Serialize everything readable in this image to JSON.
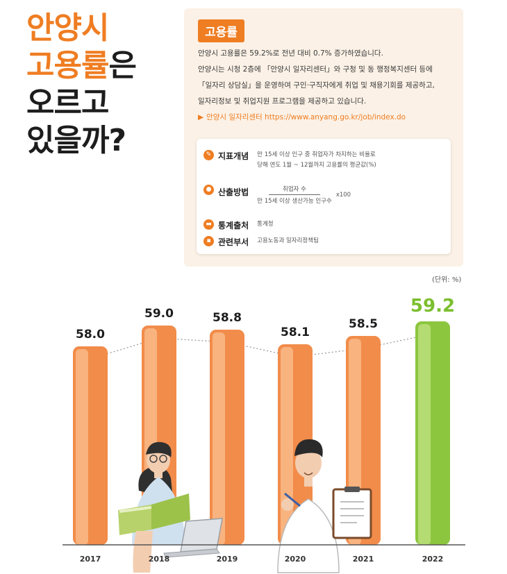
{
  "headline": {
    "line1": "안양시",
    "line2_orange": "고용률",
    "line2_dark": "은",
    "line3": "오르고",
    "line4": "있을까?"
  },
  "info": {
    "tag": "고용률",
    "paragraph": [
      "안양시 고용률은 59.2%로 전년 대비 0.7% 증가하였습니다.",
      "안양시는 시청 2층에 「안양시 일자리센터」와 구청 및 동 행정복지센터 등에",
      "「일자리 상담실」을 운영하여 구인·구직자에게 취업 및 채용기회를 제공하고,",
      "일자리정보 및 취업지원 프로그램을 제공하고 있습니다."
    ],
    "link_label": "안양시 일자리센터",
    "link_url": "https://www.anyang.go.kr/job/index.do",
    "definition": {
      "concept_label": "지표개념",
      "concept_line1": "만 15세 이상 인구 중 취업자가 차지하는 비율로",
      "concept_line2": "당해 연도 1월 ~ 12월까지 고용률의 평균값(%)",
      "method_label": "산출방법",
      "numerator": "취업자 수",
      "denominator": "만 15세 이상 생산가능 인구수",
      "multiplier": "x100",
      "source_label": "통계출처",
      "source_value": "통계청",
      "dept_label": "관련부서",
      "dept_value": "고용노동과 일자리정책팀"
    }
  },
  "unit_label": "(단위: %)",
  "colors": {
    "orange_bar": "#f28c4a",
    "orange_bar_light": "#f8b37f",
    "green_bar": "#8cc63f",
    "green_bar_light": "#b4dc72",
    "accent_orange": "#ef7d22",
    "green_label": "#7cbf2f"
  },
  "chart_data": {
    "type": "bar",
    "categories": [
      "2017",
      "2018",
      "2019",
      "2020",
      "2021",
      "2022"
    ],
    "values": [
      58.0,
      59.0,
      58.8,
      58.1,
      58.5,
      59.2
    ],
    "value_labels": [
      "58.0",
      "59.0",
      "58.8",
      "58.1",
      "58.5",
      "59.2"
    ],
    "highlight_index": 5,
    "title": "",
    "xlabel": "",
    "ylabel": "",
    "grid": false,
    "trend_line": "dotted"
  },
  "illustrations": [
    "woman-reading-book-icon",
    "laptop-icon",
    "man-with-clipboard-icon"
  ]
}
